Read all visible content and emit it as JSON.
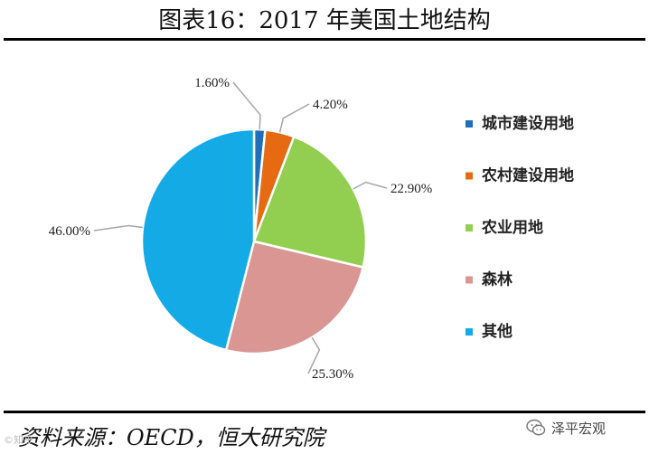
{
  "title": "图表16：2017 年美国土地结构",
  "source": "资料来源：OECD，恒大研究院",
  "watermark": {
    "label": "泽平宏观",
    "icon": "wechat-icon",
    "faint_text": "©知乎"
  },
  "chart_data": {
    "type": "pie",
    "title": "图表16：2017 年美国土地结构",
    "legend_position": "right",
    "slices": [
      {
        "name": "城市建设用地",
        "value": 1.6,
        "label": "1.60%",
        "color": "#1F6FB8"
      },
      {
        "name": "农村建设用地",
        "value": 4.2,
        "label": "4.20%",
        "color": "#E66A12"
      },
      {
        "name": "农业用地",
        "value": 22.9,
        "label": "22.90%",
        "color": "#92CF50"
      },
      {
        "name": "森林",
        "value": 25.3,
        "label": "25.30%",
        "color": "#DA9693"
      },
      {
        "name": "其他",
        "value": 46.0,
        "label": "46.00%",
        "color": "#14AAE6"
      }
    ]
  }
}
